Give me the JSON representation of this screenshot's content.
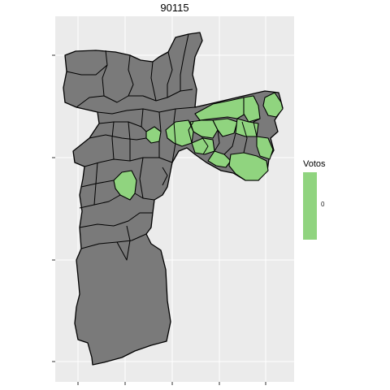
{
  "title": "90115",
  "legend": {
    "title": "Votos",
    "tick_label": "0",
    "color": "#90d47f"
  },
  "colors": {
    "panel": "#ebebeb",
    "gridline": "#ffffff",
    "district_default": "#7a7a7a",
    "district_highlight": "#90d47f",
    "border": "#000000"
  },
  "map": {
    "grid": true,
    "axis_tick_labels_visible": false
  }
}
